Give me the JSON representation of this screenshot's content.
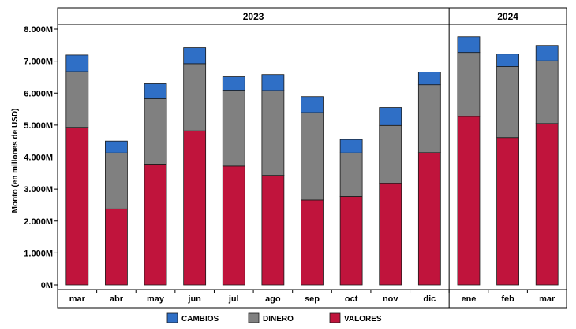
{
  "chart_data": {
    "type": "bar",
    "stacked": true,
    "ylabel": "Monto (en millones de USD)",
    "ylim": [
      0,
      8000
    ],
    "yticks": [
      0,
      1000,
      2000,
      3000,
      4000,
      5000,
      6000,
      7000,
      8000
    ],
    "ytick_labels": [
      "0M",
      "1.000M",
      "2.000M",
      "3.000M",
      "4.000M",
      "5.000M",
      "6.000M",
      "7.000M",
      "8.000M"
    ],
    "groups": [
      {
        "label": "2023",
        "categories": [
          "mar",
          "abr",
          "may",
          "jun",
          "jul",
          "ago",
          "sep",
          "oct",
          "nov",
          "dic"
        ]
      },
      {
        "label": "2024",
        "categories": [
          "ene",
          "feb",
          "mar"
        ]
      }
    ],
    "categories": [
      "mar",
      "abr",
      "may",
      "jun",
      "jul",
      "ago",
      "sep",
      "oct",
      "nov",
      "dic",
      "ene",
      "feb",
      "mar"
    ],
    "series": [
      {
        "name": "VALORES",
        "color": "#c0143c",
        "values": [
          4930,
          2380,
          3780,
          4820,
          3720,
          3430,
          2660,
          2770,
          3170,
          4140,
          5270,
          4610,
          5050
        ]
      },
      {
        "name": "DINERO",
        "color": "#808080",
        "values": [
          1740,
          1750,
          2040,
          2100,
          2370,
          2650,
          2730,
          1360,
          1820,
          2120,
          2000,
          2220,
          1960
        ]
      },
      {
        "name": "CAMBIOS",
        "color": "#2f6fc6",
        "values": [
          520,
          370,
          470,
          500,
          420,
          500,
          500,
          420,
          560,
          400,
          490,
          390,
          480
        ]
      }
    ],
    "legend": {
      "position": "bottom",
      "order": [
        "CAMBIOS",
        "DINERO",
        "VALORES"
      ]
    },
    "grid": false
  }
}
